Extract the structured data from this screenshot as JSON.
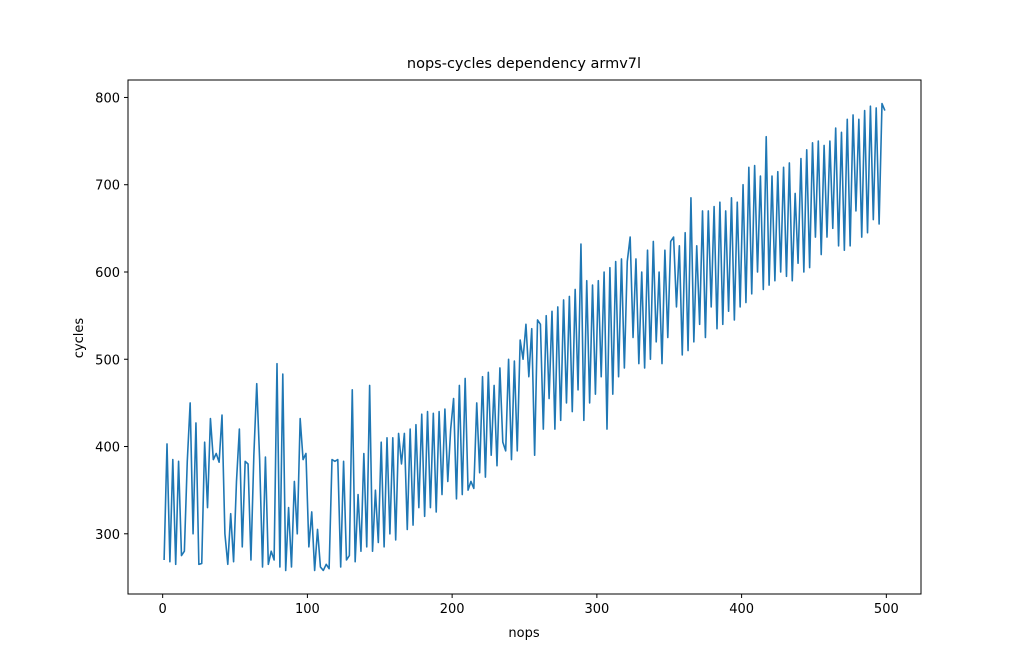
{
  "chart_data": {
    "type": "line",
    "title": "nops-cycles dependency armv7l",
    "x_label": "nops",
    "y_label": "cycles",
    "xlim": [
      -23.95,
      523.95
    ],
    "ylim": [
      231,
      820
    ],
    "xticks": [
      0,
      100,
      200,
      300,
      400,
      500
    ],
    "yticks": [
      300,
      400,
      500,
      600,
      700,
      800
    ],
    "x": [
      1,
      3,
      5,
      7,
      9,
      11,
      13,
      15,
      17,
      19,
      21,
      23,
      25,
      27,
      29,
      31,
      33,
      35,
      37,
      39,
      41,
      43,
      45,
      47,
      49,
      51,
      53,
      55,
      57,
      59,
      61,
      63,
      65,
      67,
      69,
      71,
      73,
      75,
      77,
      79,
      81,
      83,
      85,
      87,
      89,
      91,
      93,
      95,
      97,
      99,
      101,
      103,
      105,
      107,
      109,
      111,
      113,
      115,
      117,
      119,
      121,
      123,
      125,
      127,
      129,
      131,
      133,
      135,
      137,
      139,
      141,
      143,
      145,
      147,
      149,
      151,
      153,
      155,
      157,
      159,
      161,
      163,
      165,
      167,
      169,
      171,
      173,
      175,
      177,
      179,
      181,
      183,
      185,
      187,
      189,
      191,
      193,
      195,
      197,
      199,
      201,
      203,
      205,
      207,
      209,
      211,
      213,
      215,
      217,
      219,
      221,
      223,
      225,
      227,
      229,
      231,
      233,
      235,
      237,
      239,
      241,
      243,
      245,
      247,
      249,
      251,
      253,
      255,
      257,
      259,
      261,
      263,
      265,
      267,
      269,
      271,
      273,
      275,
      277,
      279,
      281,
      283,
      285,
      287,
      289,
      291,
      293,
      295,
      297,
      299,
      301,
      303,
      305,
      307,
      309,
      311,
      313,
      315,
      317,
      319,
      321,
      323,
      325,
      327,
      329,
      331,
      333,
      335,
      337,
      339,
      341,
      343,
      345,
      347,
      349,
      351,
      353,
      355,
      357,
      359,
      361,
      363,
      365,
      367,
      369,
      371,
      373,
      375,
      377,
      379,
      381,
      383,
      385,
      387,
      389,
      391,
      393,
      395,
      397,
      399,
      401,
      403,
      405,
      407,
      409,
      411,
      413,
      415,
      417,
      419,
      421,
      423,
      425,
      427,
      429,
      431,
      433,
      435,
      437,
      439,
      441,
      443,
      445,
      447,
      449,
      451,
      453,
      455,
      457,
      459,
      461,
      463,
      465,
      467,
      469,
      471,
      473,
      475,
      477,
      479,
      481,
      483,
      485,
      487,
      489,
      491,
      493,
      495,
      497,
      499
    ],
    "series": [
      {
        "color": "#1f77b4",
        "values": [
          270,
          403,
          268,
          385,
          265,
          383,
          275,
          280,
          383,
          450,
          300,
          427,
          265,
          266,
          405,
          330,
          432,
          385,
          392,
          382,
          436,
          300,
          265,
          323,
          268,
          360,
          420,
          285,
          383,
          380,
          270,
          390,
          472,
          385,
          262,
          388,
          265,
          280,
          270,
          495,
          262,
          483,
          258,
          330,
          262,
          360,
          300,
          432,
          385,
          392,
          285,
          325,
          258,
          305,
          262,
          258,
          265,
          260,
          385,
          383,
          385,
          262,
          383,
          270,
          275,
          465,
          268,
          345,
          280,
          392,
          285,
          470,
          280,
          350,
          290,
          405,
          285,
          410,
          300,
          410,
          293,
          415,
          380,
          415,
          305,
          420,
          310,
          425,
          330,
          437,
          320,
          440,
          330,
          438,
          325,
          440,
          345,
          443,
          360,
          420,
          455,
          340,
          470,
          345,
          478,
          350,
          360,
          352,
          450,
          370,
          480,
          365,
          485,
          390,
          470,
          378,
          490,
          405,
          395,
          500,
          385,
          498,
          395,
          522,
          500,
          540,
          480,
          535,
          390,
          545,
          540,
          420,
          550,
          455,
          555,
          420,
          560,
          430,
          568,
          450,
          572,
          440,
          580,
          465,
          632,
          430,
          590,
          450,
          585,
          460,
          590,
          480,
          600,
          420,
          605,
          460,
          612,
          480,
          615,
          490,
          612,
          640,
          525,
          615,
          495,
          600,
          490,
          625,
          500,
          635,
          520,
          600,
          495,
          625,
          525,
          635,
          640,
          560,
          630,
          505,
          645,
          510,
          685,
          520,
          630,
          540,
          670,
          525,
          670,
          560,
          675,
          535,
          680,
          540,
          670,
          555,
          685,
          545,
          680,
          560,
          700,
          565,
          720,
          575,
          722,
          600,
          710,
          580,
          755,
          585,
          710,
          590,
          715,
          600,
          720,
          595,
          725,
          590,
          690,
          610,
          730,
          600,
          740,
          605,
          748,
          640,
          750,
          620,
          745,
          640,
          750,
          650,
          765,
          630,
          760,
          625,
          775,
          630,
          780,
          670,
          775,
          640,
          785,
          645,
          790,
          660,
          788,
          655,
          793,
          785
        ]
      }
    ]
  }
}
